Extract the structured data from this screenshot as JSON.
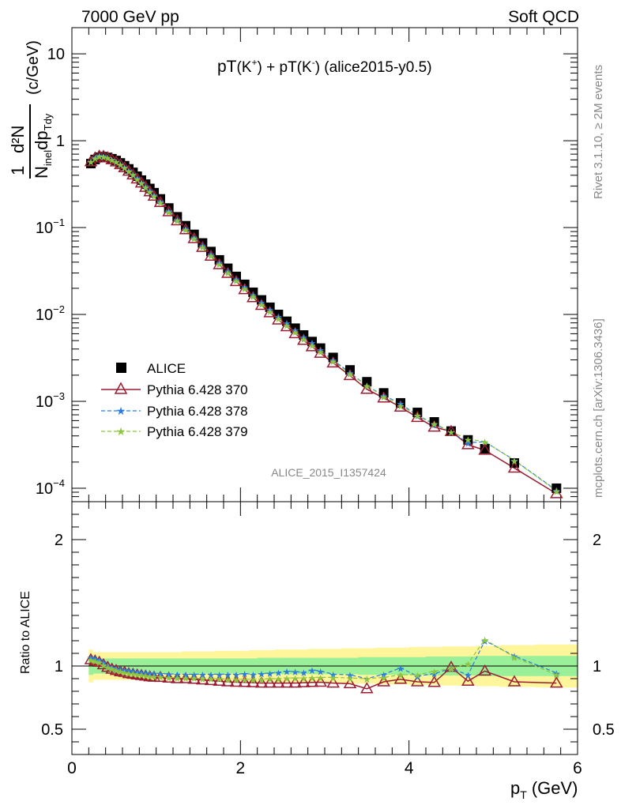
{
  "header": {
    "energy_label": "7000 GeV pp",
    "category_label": "Soft QCD"
  },
  "side_labels": {
    "rivet": "Rivet 3.1.10, ≥ 2M events",
    "mcplots": "mcplots.cern.ch [arXiv:1306.3436]"
  },
  "watermark": "ALICE_2015_I1357424",
  "chart_data": [
    {
      "type": "scatter",
      "title": "pT(K⁺) + pT(K⁻) (alice2015-y0.5)",
      "title_parts": {
        "main": "pT",
        "k_plus": "(K",
        "plus_sup": "+",
        "mid": ") + pT(K",
        "minus_sup": "-",
        "tail": ") (alice2015-y0.5)"
      },
      "ylabel": "1/N_inel d²N/dp_T dy (c/GeV)",
      "ylabel_parts": {
        "one": "1",
        "d2N": "d²N",
        "den1": "N",
        "den_sub": "inel",
        "den2": "dp",
        "den_sub2": "Tdy",
        "unit": "(c/GeV)"
      },
      "xlabel": "p_T (GeV)",
      "xlabel_parts": {
        "p": "p",
        "sub": "T",
        "unit": "(GeV)"
      },
      "yscale": "log",
      "ylim": [
        7e-05,
        20
      ],
      "xlim": [
        0,
        6
      ],
      "y_tick_labels": [
        {
          "v": 10,
          "base": "10",
          "exp": ""
        },
        {
          "v": 1,
          "base": "1",
          "exp": ""
        },
        {
          "v": 0.1,
          "base": "10",
          "exp": "−1"
        },
        {
          "v": 0.01,
          "base": "10",
          "exp": "−2"
        },
        {
          "v": 0.001,
          "base": "10",
          "exp": "−3"
        },
        {
          "v": 0.0001,
          "base": "10",
          "exp": "−4"
        }
      ],
      "legend_placement": "bottom-left",
      "x": [
        0.225,
        0.275,
        0.325,
        0.375,
        0.425,
        0.475,
        0.525,
        0.575,
        0.625,
        0.675,
        0.725,
        0.775,
        0.825,
        0.875,
        0.925,
        0.975,
        1.05,
        1.15,
        1.25,
        1.35,
        1.45,
        1.55,
        1.65,
        1.75,
        1.85,
        1.95,
        2.05,
        2.15,
        2.25,
        2.35,
        2.45,
        2.55,
        2.65,
        2.75,
        2.85,
        2.95,
        3.1,
        3.3,
        3.5,
        3.7,
        3.9,
        4.1,
        4.3,
        4.5,
        4.7,
        4.9,
        5.25,
        5.75
      ],
      "series": [
        {
          "name": "ALICE",
          "color": "#000000",
          "marker": "square",
          "values": [
            0.545,
            0.608,
            0.645,
            0.655,
            0.642,
            0.62,
            0.592,
            0.555,
            0.515,
            0.474,
            0.432,
            0.39,
            0.352,
            0.316,
            0.282,
            0.252,
            0.214,
            0.168,
            0.133,
            0.105,
            0.0835,
            0.0665,
            0.053,
            0.0425,
            0.034,
            0.0274,
            0.0222,
            0.018,
            0.0147,
            0.0121,
            0.01,
            0.00835,
            0.00695,
            0.0058,
            0.00488,
            0.0041,
            0.0032,
            0.0023,
            0.00168,
            0.00125,
            0.00096,
            0.000745,
            0.00058,
            0.000455,
            0.00036,
            0.000285,
            0.000195,
            0.0001
          ]
        },
        {
          "name": "Pythia 6.428 370",
          "color": "#9b1c31",
          "marker": "open-triangle",
          "line": "solid",
          "ratio": [
            1.05,
            1.04,
            1.03,
            1.01,
            0.99,
            0.975,
            0.965,
            0.955,
            0.95,
            0.94,
            0.935,
            0.93,
            0.925,
            0.92,
            0.915,
            0.912,
            0.91,
            0.905,
            0.9,
            0.9,
            0.895,
            0.89,
            0.885,
            0.88,
            0.875,
            0.872,
            0.87,
            0.868,
            0.865,
            0.865,
            0.865,
            0.865,
            0.865,
            0.868,
            0.87,
            0.872,
            0.865,
            0.86,
            0.82,
            0.875,
            0.895,
            0.875,
            0.87,
            0.99,
            0.88,
            0.96,
            0.875,
            0.865
          ]
        },
        {
          "name": "Pythia 6.428 378",
          "color": "#2a7dde",
          "marker": "star",
          "line": "dashed",
          "ratio": [
            1.07,
            1.06,
            1.05,
            1.03,
            1.0,
            0.99,
            0.98,
            0.975,
            0.97,
            0.965,
            0.96,
            0.955,
            0.95,
            0.948,
            0.945,
            0.943,
            0.94,
            0.938,
            0.935,
            0.935,
            0.935,
            0.935,
            0.935,
            0.935,
            0.935,
            0.935,
            0.94,
            0.935,
            0.94,
            0.945,
            0.95,
            0.96,
            0.955,
            0.95,
            0.97,
            0.96,
            0.935,
            0.93,
            0.9,
            0.935,
            0.985,
            0.92,
            0.94,
            0.98,
            0.93,
            1.2,
            1.08,
            0.945
          ]
        },
        {
          "name": "Pythia 6.428 379",
          "color": "#8dc63f",
          "marker": "star",
          "line": "dashed",
          "ratio": [
            1.05,
            1.04,
            1.03,
            1.01,
            0.99,
            0.98,
            0.97,
            0.96,
            0.95,
            0.945,
            0.94,
            0.935,
            0.93,
            0.925,
            0.92,
            0.918,
            0.915,
            0.91,
            0.905,
            0.905,
            0.905,
            0.9,
            0.9,
            0.9,
            0.895,
            0.895,
            0.895,
            0.895,
            0.895,
            0.9,
            0.9,
            0.905,
            0.905,
            0.905,
            0.91,
            0.91,
            0.91,
            0.905,
            0.9,
            0.91,
            0.93,
            0.93,
            0.96,
            0.98,
            1.02,
            1.21,
            1.07,
            0.93
          ]
        }
      ]
    },
    {
      "type": "line",
      "ylabel": "Ratio to ALICE",
      "xlabel": "p_T (GeV)",
      "xlim": [
        0,
        6
      ],
      "ylim": [
        0.3,
        2.3
      ],
      "y_tick_labels": [
        "2",
        "1",
        "0.5"
      ],
      "y_ticks": [
        2,
        1,
        0.5
      ],
      "x_tick_labels": [
        "0",
        "2",
        "4",
        "6"
      ],
      "x_ticks": [
        0,
        2,
        4,
        6
      ],
      "reference_line": 1,
      "band_colors": {
        "inner": "#99f099",
        "outer": "#fff59a"
      },
      "band_inner_halfwidth": [
        0.07,
        0.06,
        0.06,
        0.06,
        0.06,
        0.06,
        0.06,
        0.06,
        0.06,
        0.06,
        0.06,
        0.06,
        0.06,
        0.06,
        0.06,
        0.06,
        0.06,
        0.06,
        0.06,
        0.06,
        0.06,
        0.06,
        0.06,
        0.06,
        0.06,
        0.06,
        0.06,
        0.06,
        0.065,
        0.065,
        0.065,
        0.065,
        0.065,
        0.065,
        0.065,
        0.065,
        0.065,
        0.065,
        0.07,
        0.07,
        0.07,
        0.07,
        0.075,
        0.075,
        0.075,
        0.08,
        0.08,
        0.08
      ],
      "band_outer_halfwidth": [
        0.13,
        0.11,
        0.11,
        0.11,
        0.11,
        0.11,
        0.11,
        0.11,
        0.11,
        0.11,
        0.11,
        0.11,
        0.11,
        0.11,
        0.11,
        0.11,
        0.11,
        0.11,
        0.11,
        0.115,
        0.115,
        0.115,
        0.115,
        0.12,
        0.12,
        0.12,
        0.12,
        0.125,
        0.125,
        0.125,
        0.13,
        0.13,
        0.13,
        0.13,
        0.135,
        0.135,
        0.135,
        0.14,
        0.14,
        0.145,
        0.145,
        0.15,
        0.15,
        0.155,
        0.155,
        0.16,
        0.165,
        0.17
      ]
    }
  ]
}
